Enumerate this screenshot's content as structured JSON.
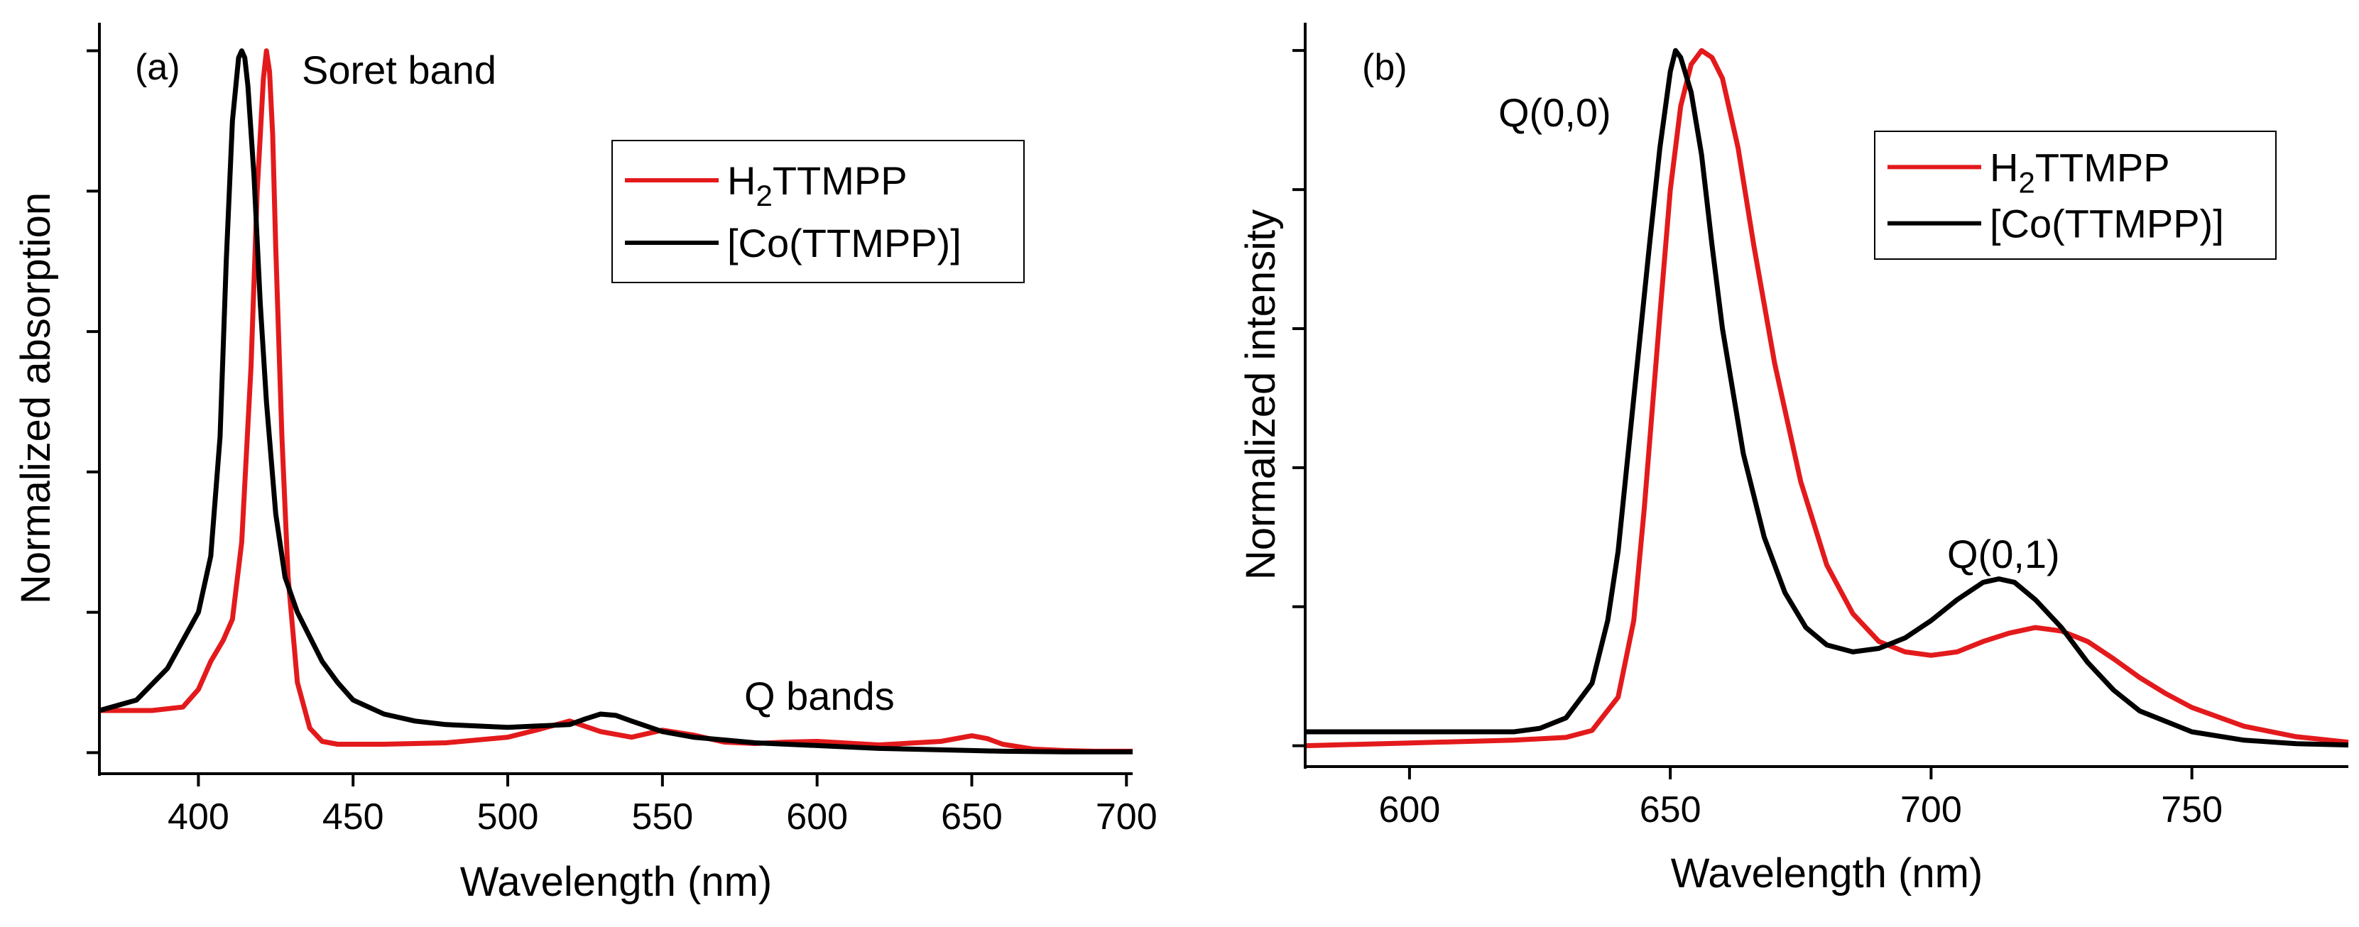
{
  "chart_data": [
    {
      "type": "line",
      "panel_label": "(a)",
      "xlabel": "Wavelength (nm)",
      "ylabel": "Normalized absorption",
      "xlim": [
        368,
        702
      ],
      "ylim": [
        -0.03,
        1.04
      ],
      "xticks": [
        400,
        450,
        500,
        550,
        600,
        650,
        700
      ],
      "yticks": [
        0,
        0.2,
        0.4,
        0.6,
        0.8,
        1.0
      ],
      "show_ytick_labels": false,
      "grid": false,
      "legend_position": "top-right",
      "annotations": [
        {
          "id": "soret",
          "text": "Soret band",
          "x": 427,
          "y": 0.98
        },
        {
          "id": "qbands",
          "text": "Q bands",
          "x": 555,
          "y": 0.11
        }
      ],
      "series": [
        {
          "name": "H",
          "sub": "2",
          "name_rest": "TTMPP",
          "color": "#e31a1c",
          "x": [
            368,
            385,
            395,
            400,
            404,
            408,
            411,
            414,
            417,
            419,
            421,
            422,
            423,
            424,
            425,
            427,
            429,
            432,
            436,
            440,
            445,
            450,
            460,
            480,
            500,
            510,
            520,
            530,
            540,
            550,
            560,
            570,
            580,
            590,
            600,
            620,
            640,
            650,
            655,
            660,
            670,
            680,
            690,
            702
          ],
          "y": [
            0.06,
            0.06,
            0.065,
            0.09,
            0.13,
            0.16,
            0.19,
            0.3,
            0.55,
            0.8,
            0.96,
            1.0,
            0.97,
            0.88,
            0.72,
            0.45,
            0.25,
            0.1,
            0.035,
            0.016,
            0.012,
            0.012,
            0.012,
            0.014,
            0.022,
            0.033,
            0.045,
            0.03,
            0.022,
            0.032,
            0.025,
            0.015,
            0.013,
            0.015,
            0.016,
            0.011,
            0.016,
            0.024,
            0.02,
            0.012,
            0.005,
            0.003,
            0.002,
            0.002
          ]
        },
        {
          "name": "[Co(TTMPP)]",
          "sub": "",
          "name_rest": "",
          "color": "#000000",
          "x": [
            368,
            380,
            390,
            395,
            400,
            404,
            407,
            409,
            411,
            413,
            414,
            415,
            416,
            418,
            420,
            422,
            425,
            428,
            432,
            436,
            440,
            445,
            450,
            460,
            470,
            480,
            500,
            520,
            525,
            530,
            535,
            540,
            550,
            560,
            570,
            580,
            600,
            620,
            640,
            650,
            660,
            680,
            702
          ],
          "y": [
            0.06,
            0.075,
            0.12,
            0.16,
            0.2,
            0.28,
            0.45,
            0.7,
            0.9,
            0.99,
            1.0,
            0.99,
            0.95,
            0.82,
            0.64,
            0.5,
            0.34,
            0.25,
            0.2,
            0.165,
            0.13,
            0.1,
            0.075,
            0.055,
            0.045,
            0.04,
            0.036,
            0.04,
            0.048,
            0.055,
            0.053,
            0.045,
            0.03,
            0.022,
            0.018,
            0.014,
            0.01,
            0.006,
            0.004,
            0.003,
            0.002,
            0.001,
            0.001
          ]
        }
      ]
    },
    {
      "type": "line",
      "panel_label": "(b)",
      "xlabel": "Wavelength (nm)",
      "ylabel": "Normalized intensity",
      "xlim": [
        580,
        780
      ],
      "ylim": [
        -0.03,
        1.04
      ],
      "xticks": [
        600,
        650,
        700,
        750
      ],
      "yticks": [
        0,
        0.2,
        0.4,
        0.6,
        0.8,
        1.0
      ],
      "show_ytick_labels": false,
      "grid": false,
      "legend_position": "top-right",
      "annotations": [
        {
          "id": "q00",
          "text": "Q(0,0)",
          "x": 634,
          "y": 0.96
        },
        {
          "id": "q01",
          "text": "Q(0,1)",
          "x": 713,
          "y": 0.28
        }
      ],
      "series": [
        {
          "name": "H",
          "sub": "2",
          "name_rest": "TTMPP",
          "color": "#e31a1c",
          "x": [
            580,
            600,
            620,
            630,
            635,
            640,
            643,
            645,
            648,
            650,
            652,
            654,
            656,
            658,
            660,
            663,
            666,
            670,
            675,
            680,
            685,
            690,
            695,
            700,
            705,
            710,
            715,
            720,
            725,
            730,
            735,
            740,
            745,
            750,
            760,
            770,
            780
          ],
          "y": [
            0.0,
            0.004,
            0.008,
            0.012,
            0.022,
            0.07,
            0.18,
            0.34,
            0.62,
            0.8,
            0.92,
            0.98,
            1.0,
            0.99,
            0.96,
            0.86,
            0.72,
            0.55,
            0.38,
            0.26,
            0.19,
            0.15,
            0.135,
            0.13,
            0.135,
            0.15,
            0.162,
            0.17,
            0.165,
            0.15,
            0.125,
            0.098,
            0.075,
            0.055,
            0.028,
            0.013,
            0.005
          ]
        },
        {
          "name": "[Co(TTMPP)]",
          "sub": "",
          "name_rest": "",
          "color": "#000000",
          "x": [
            580,
            600,
            620,
            625,
            630,
            635,
            638,
            640,
            643,
            646,
            648,
            650,
            651,
            652,
            654,
            656,
            658,
            660,
            664,
            668,
            672,
            676,
            680,
            685,
            690,
            695,
            700,
            705,
            710,
            713,
            716,
            720,
            725,
            730,
            735,
            740,
            750,
            760,
            770,
            780
          ],
          "y": [
            0.02,
            0.02,
            0.02,
            0.025,
            0.04,
            0.09,
            0.18,
            0.28,
            0.5,
            0.72,
            0.86,
            0.97,
            1.0,
            0.99,
            0.94,
            0.85,
            0.72,
            0.6,
            0.42,
            0.3,
            0.22,
            0.17,
            0.145,
            0.135,
            0.14,
            0.155,
            0.18,
            0.21,
            0.235,
            0.24,
            0.235,
            0.21,
            0.17,
            0.12,
            0.08,
            0.05,
            0.02,
            0.008,
            0.003,
            0.001
          ]
        }
      ]
    }
  ]
}
